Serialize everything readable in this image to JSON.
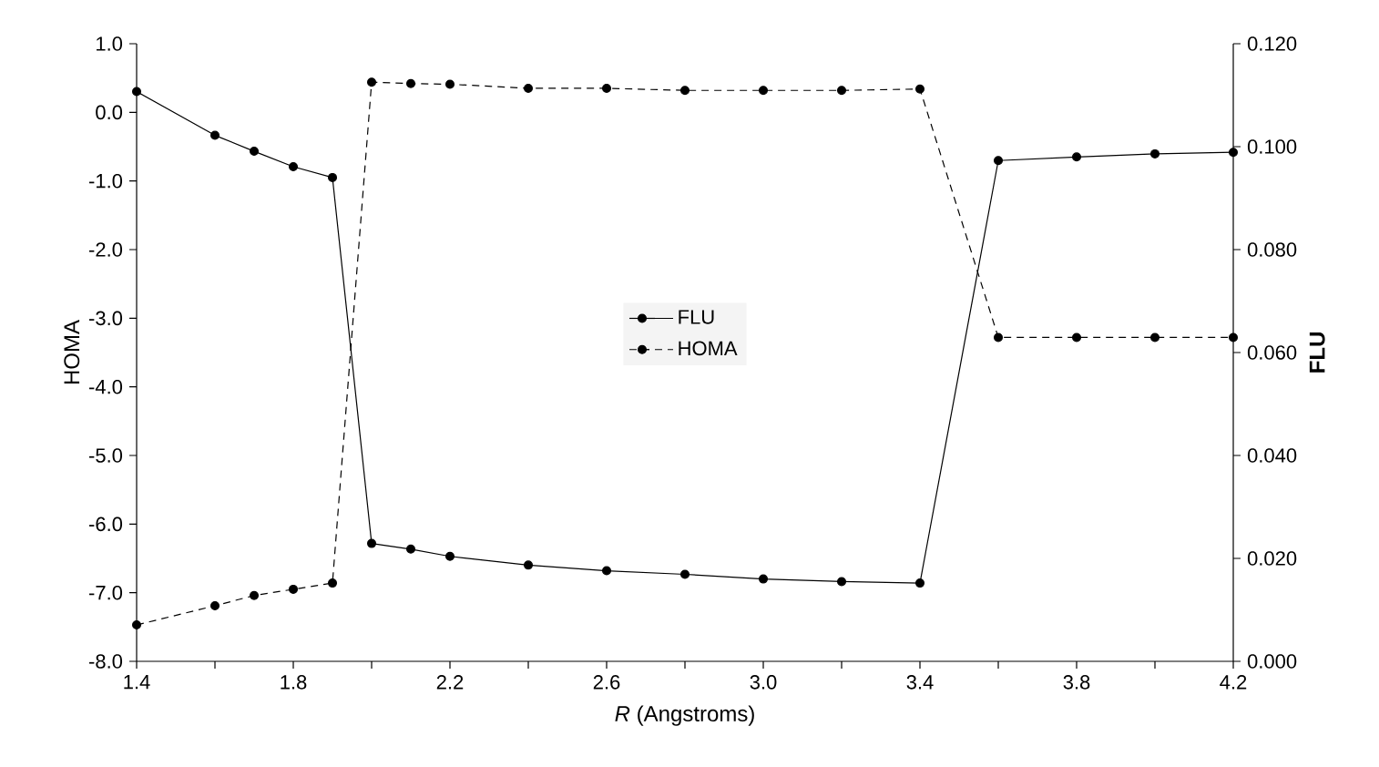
{
  "chart_data": {
    "type": "line",
    "xlabel": "*R* (Angstroms)",
    "ylabel": "HOMA",
    "y2label": "**FLU**",
    "xlim": [
      1.4,
      4.2
    ],
    "xticks": [
      1.4,
      {
        "value": 1.6,
        "label": null
      },
      1.8,
      {
        "value": 2.0,
        "label": null
      },
      2.2,
      {
        "value": 2.4,
        "label": null
      },
      2.6,
      {
        "value": 2.8,
        "label": null
      },
      {
        "value": 3.0,
        "label": "3.0"
      },
      {
        "value": 3.2,
        "label": null
      },
      3.4,
      {
        "value": 3.6,
        "label": null
      },
      3.8,
      {
        "value": 4.0,
        "label": null
      },
      4.2
    ],
    "ylim": [
      -8,
      1
    ],
    "yticks": [
      {
        "value": -8,
        "label": "-8.0"
      },
      {
        "value": -7,
        "label": "-7.0"
      },
      {
        "value": -6,
        "label": "-6.0"
      },
      {
        "value": -5,
        "label": "-5.0"
      },
      {
        "value": -4,
        "label": "-4.0"
      },
      {
        "value": -3,
        "label": "-3.0"
      },
      {
        "value": -2,
        "label": "-2.0"
      },
      {
        "value": -1,
        "label": "-1.0"
      },
      {
        "value": 0,
        "label": "0.0"
      },
      {
        "value": 1,
        "label": "1.0"
      }
    ],
    "y2lim": [
      0,
      0.12
    ],
    "y2ticks": [
      {
        "value": 0,
        "label": "0.000"
      },
      {
        "value": 0.02,
        "label": "0.020"
      },
      {
        "value": 0.04,
        "label": "0.040"
      },
      {
        "value": 0.06,
        "label": "0.060"
      },
      {
        "value": 0.08,
        "label": "0.080"
      },
      {
        "value": 0.1,
        "label": "0.100"
      },
      {
        "value": 0.12,
        "label": "0.120"
      }
    ],
    "x": [
      1.4,
      1.6,
      1.7,
      1.8,
      1.9,
      2.0,
      2.1,
      2.2,
      2.4,
      2.6,
      2.8,
      3.0,
      3.2,
      3.4,
      3.6,
      3.8,
      4.0,
      4.2
    ],
    "series": [
      {
        "name": "FLU",
        "color": "#000000",
        "axis": "y2",
        "line_style": "solid",
        "values": [
          0.1107,
          0.1022,
          0.0991,
          0.0961,
          0.094,
          0.0229,
          0.0218,
          0.0204,
          0.0187,
          0.0176,
          0.0169,
          0.016,
          0.0155,
          0.0152,
          0.0973,
          0.098,
          0.0986,
          0.0989
        ]
      },
      {
        "name": "HOMA",
        "color": "#000000",
        "axis": "y",
        "line_style": "dashed",
        "values": [
          -7.47,
          -7.19,
          -7.04,
          -6.95,
          -6.86,
          0.44,
          0.42,
          0.41,
          0.35,
          0.35,
          0.32,
          0.32,
          0.32,
          0.34,
          -3.28,
          -3.28,
          -3.28,
          -3.28
        ]
      }
    ],
    "marker": "circle",
    "legend": "center",
    "grid": false
  }
}
